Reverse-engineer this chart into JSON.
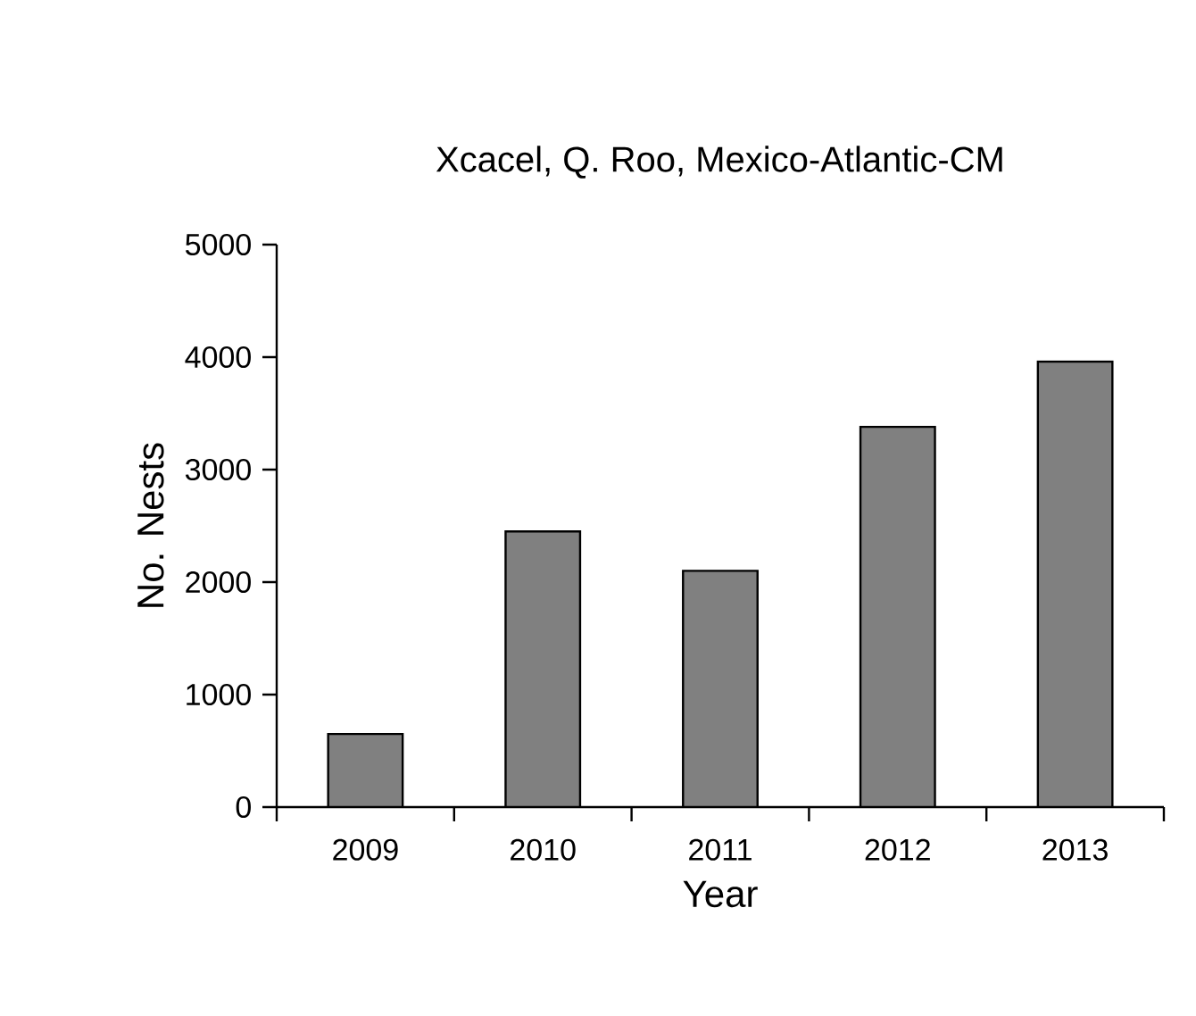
{
  "chart_data": {
    "type": "bar",
    "title": "Xcacel, Q. Roo, Mexico-Atlantic-CM",
    "xlabel": "Year",
    "ylabel": "No. Nests",
    "categories": [
      "2009",
      "2010",
      "2011",
      "2012",
      "2013"
    ],
    "values": [
      650,
      2450,
      2100,
      3380,
      3960
    ],
    "color": "#808080",
    "ylim": [
      0,
      5000
    ],
    "yticks": [
      0,
      1000,
      2000,
      3000,
      4000,
      5000
    ]
  }
}
